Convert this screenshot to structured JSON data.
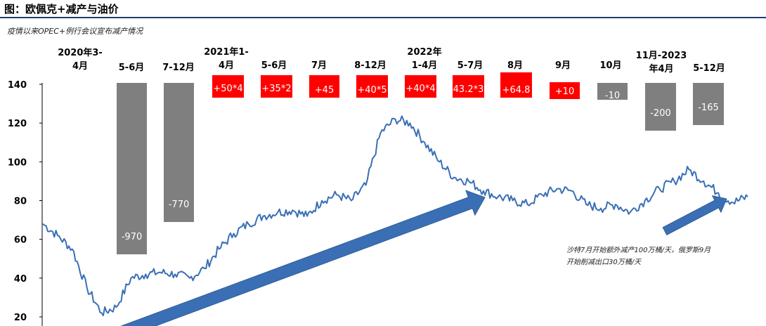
{
  "header": {
    "title": "图：欧佩克+减产与油价",
    "subtitle": "疫情以来OPEC+例行会议宣布减产情况"
  },
  "chart_data": {
    "type": "line",
    "ylim": [
      20,
      140
    ],
    "y_ticks": [
      20,
      40,
      60,
      80,
      100,
      120,
      140
    ],
    "series": [
      {
        "values": [
          68,
          62,
          55,
          35,
          22,
          25,
          40,
          42,
          43,
          42,
          40,
          45,
          55,
          63,
          68,
          72,
          74,
          75,
          72,
          80,
          83,
          80,
          88,
          115,
          122,
          120,
          110,
          100,
          92,
          90,
          85,
          82,
          80,
          78,
          83,
          86,
          85,
          78,
          76,
          78,
          74,
          80,
          86,
          90,
          96,
          90,
          84,
          79,
          82
        ]
      }
    ],
    "period_labels": [
      {
        "id": "p1",
        "lines": [
          "2020年3-",
          "4月"
        ]
      },
      {
        "id": "p2",
        "lines": [
          "5-6月"
        ]
      },
      {
        "id": "p3",
        "lines": [
          "7-12月"
        ]
      },
      {
        "id": "p4",
        "lines": [
          "2021年1-",
          "4月"
        ]
      },
      {
        "id": "p5",
        "lines": [
          "5-6月"
        ]
      },
      {
        "id": "p6",
        "lines": [
          "7月"
        ]
      },
      {
        "id": "p7",
        "lines": [
          "8-12月"
        ]
      },
      {
        "id": "p8",
        "lines": [
          "2022年",
          "1-4月"
        ]
      },
      {
        "id": "p9",
        "lines": [
          "5-7月"
        ]
      },
      {
        "id": "p10",
        "lines": [
          "8月"
        ]
      },
      {
        "id": "p11",
        "lines": [
          "9月"
        ]
      },
      {
        "id": "p12",
        "lines": [
          "10月"
        ]
      },
      {
        "id": "p13",
        "lines": [
          "11月-2023",
          "年4月"
        ]
      },
      {
        "id": "p14",
        "lines": [
          "5-12月"
        ]
      }
    ],
    "production_changes": [
      {
        "label": "-970",
        "value": -970,
        "color": "#7f7f7f"
      },
      {
        "label": "-770",
        "value": -770,
        "color": "#7f7f7f"
      },
      {
        "label": "+50*4",
        "value": 200,
        "color": "#ff0000"
      },
      {
        "label": "+35*2",
        "value": 70,
        "color": "#ff0000"
      },
      {
        "label": "+45",
        "value": 45,
        "color": "#ff0000"
      },
      {
        "label": "+40*5",
        "value": 200,
        "color": "#ff0000"
      },
      {
        "label": "+40*4",
        "value": 160,
        "color": "#ff0000"
      },
      {
        "label": "43.2*3",
        "value": 129.6,
        "color": "#ff0000"
      },
      {
        "label": "+64.8",
        "value": 64.8,
        "color": "#ff0000"
      },
      {
        "label": "+10",
        "value": 10,
        "color": "#ff0000"
      },
      {
        "label": "-10",
        "value": -10,
        "color": "#7f7f7f"
      },
      {
        "label": "-200",
        "value": -200,
        "color": "#7f7f7f"
      },
      {
        "label": "-165",
        "value": -165,
        "color": "#7f7f7f"
      }
    ],
    "annotation": [
      "沙特7月开始额外减产100万桶/天，俄罗斯9月",
      "开始削减出口30万桶/天"
    ],
    "colors": {
      "price_line": "#3a6fb5",
      "arrow": "#3a6fb5",
      "cut": "#7f7f7f",
      "increase": "#ff0000"
    }
  }
}
